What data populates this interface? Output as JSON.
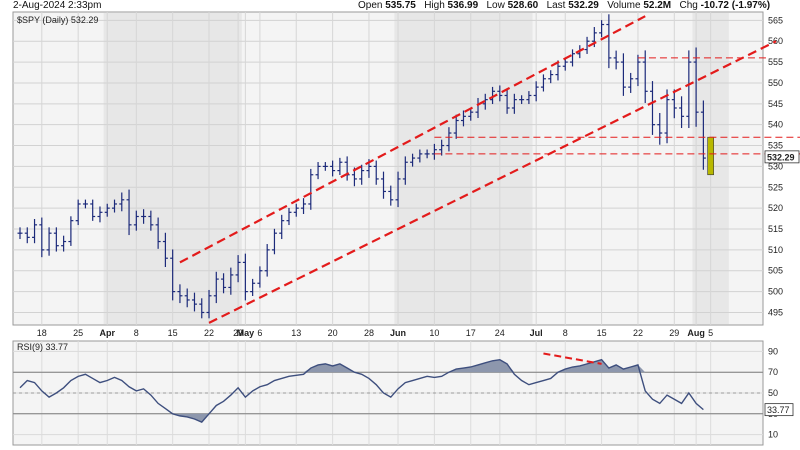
{
  "header": {
    "date": "2-Aug-2024 2:33pm",
    "open_label": "Open",
    "open": "535.75",
    "high_label": "High",
    "high": "536.99",
    "low_label": "Low",
    "low": "528.60",
    "last_label": "Last",
    "last": "532.29",
    "volume_label": "Volume",
    "volume": "52.2M",
    "chg_label": "Chg",
    "chg": "-10.72 (-1.97%)"
  },
  "colors": {
    "bar": "#1c2a7a",
    "channel": "#e31b1b",
    "rsi_line": "#3e4f7e",
    "rsi_fill": "#8d97ad",
    "panel_bg": "#f4f4f4",
    "band": "#e7e7e7",
    "highlight": "#b8b800"
  },
  "chart_data": [
    {
      "type": "ohlc",
      "label": "$SPY (Daily) 532.29",
      "last_label": "532.29",
      "y_ticks": [
        495,
        500,
        505,
        510,
        515,
        520,
        525,
        530,
        535,
        540,
        545,
        550,
        555,
        560,
        565
      ],
      "ylim": [
        492,
        567
      ],
      "x_labels": [
        {
          "i": 3,
          "text": "18",
          "month": false
        },
        {
          "i": 8,
          "text": "25",
          "month": false
        },
        {
          "i": 12,
          "text": "Apr",
          "month": true
        },
        {
          "i": 16,
          "text": "8",
          "month": false
        },
        {
          "i": 21,
          "text": "15",
          "month": false
        },
        {
          "i": 26,
          "text": "22",
          "month": false
        },
        {
          "i": 30,
          "text": "29",
          "month": false
        },
        {
          "i": 31,
          "text": "May",
          "month": true
        },
        {
          "i": 33,
          "text": "6",
          "month": false
        },
        {
          "i": 38,
          "text": "13",
          "month": false
        },
        {
          "i": 43,
          "text": "20",
          "month": false
        },
        {
          "i": 48,
          "text": "28",
          "month": false
        },
        {
          "i": 52,
          "text": "Jun",
          "month": true
        },
        {
          "i": 57,
          "text": "10",
          "month": false
        },
        {
          "i": 62,
          "text": "17",
          "month": false
        },
        {
          "i": 66,
          "text": "24",
          "month": false
        },
        {
          "i": 71,
          "text": "Jul",
          "month": true
        },
        {
          "i": 75,
          "text": "8",
          "month": false
        },
        {
          "i": 80,
          "text": "15",
          "month": false
        },
        {
          "i": 85,
          "text": "22",
          "month": false
        },
        {
          "i": 90,
          "text": "29",
          "month": false
        },
        {
          "i": 93,
          "text": "Aug",
          "month": true
        },
        {
          "i": 95,
          "text": "5",
          "month": false
        }
      ],
      "close": [
        514,
        513,
        516,
        510,
        514,
        511,
        512,
        517,
        521,
        521,
        518,
        519,
        520,
        521,
        522,
        516,
        518,
        518,
        516,
        512,
        508,
        500,
        499,
        498,
        497,
        495,
        499,
        503,
        501,
        504,
        507,
        500,
        502,
        505,
        510,
        514,
        517,
        519,
        520,
        521,
        528,
        530,
        530,
        529,
        531,
        528,
        527,
        529,
        530,
        527,
        524,
        522,
        527,
        531,
        532,
        533,
        533,
        534,
        535,
        538,
        541,
        542,
        543,
        545,
        546,
        548,
        547,
        544,
        546,
        546,
        547,
        549,
        551,
        552,
        554,
        555,
        557,
        558,
        560,
        562,
        564,
        556,
        555,
        549,
        551,
        555,
        548,
        540,
        538,
        546,
        544,
        542,
        555,
        543,
        532
      ],
      "range": [
        4,
        4,
        4,
        5,
        4,
        4,
        4,
        3,
        3,
        3,
        3,
        4,
        3,
        3,
        5,
        7,
        4,
        5,
        4,
        5,
        6,
        6,
        5,
        5,
        5,
        4,
        4,
        5,
        4,
        5,
        5,
        6,
        3,
        3,
        4,
        3,
        4,
        3,
        3,
        4,
        4,
        3,
        3,
        4,
        3,
        4,
        5,
        4,
        5,
        4,
        5,
        4,
        5,
        4,
        3,
        3,
        3,
        4,
        4,
        4,
        4,
        4,
        3,
        4,
        4,
        3,
        4,
        4,
        4,
        3,
        3,
        4,
        3,
        3,
        4,
        3,
        3,
        3,
        3,
        4,
        3,
        7,
        5,
        6,
        4,
        5,
        8,
        7,
        8,
        7,
        7,
        8,
        8,
        10,
        8
      ],
      "channel": {
        "upper": [
          [
            22,
            507
          ],
          [
            86,
            566
          ]
        ],
        "lower": [
          [
            26,
            492.5
          ],
          [
            104,
            560
          ]
        ]
      },
      "levels": [
        {
          "y": 556,
          "from": 85,
          "to": 103
        },
        {
          "y": 537,
          "from": 57,
          "to": 109
        },
        {
          "y": 533,
          "from": 57,
          "to": 109
        }
      ],
      "highlight_box": {
        "i": 95,
        "low": 528,
        "high": 537
      }
    },
    {
      "type": "area-line",
      "label": "RSI(9) 33.77",
      "last_label": "33.77",
      "y_ticks": [
        10,
        30,
        50,
        70,
        90
      ],
      "ylim": [
        0,
        100
      ],
      "levels": [
        30,
        70
      ],
      "mid": 50,
      "values": [
        55,
        62,
        60,
        52,
        46,
        50,
        55,
        62,
        66,
        68,
        64,
        60,
        62,
        65,
        62,
        56,
        52,
        54,
        48,
        40,
        35,
        30,
        28,
        27,
        25,
        22,
        30,
        38,
        42,
        48,
        55,
        46,
        52,
        56,
        58,
        62,
        64,
        66,
        67,
        68,
        74,
        77,
        78,
        76,
        78,
        74,
        70,
        68,
        64,
        58,
        50,
        46,
        54,
        60,
        62,
        64,
        66,
        65,
        66,
        70,
        73,
        74,
        75,
        77,
        79,
        81,
        82,
        78,
        68,
        62,
        58,
        60,
        62,
        64,
        70,
        73,
        75,
        76,
        78,
        80,
        82,
        74,
        77,
        73,
        75,
        77,
        52,
        44,
        40,
        48,
        44,
        40,
        50,
        40,
        34
      ],
      "divergence": [
        [
          72,
          88
        ],
        [
          80,
          78
        ]
      ]
    }
  ]
}
